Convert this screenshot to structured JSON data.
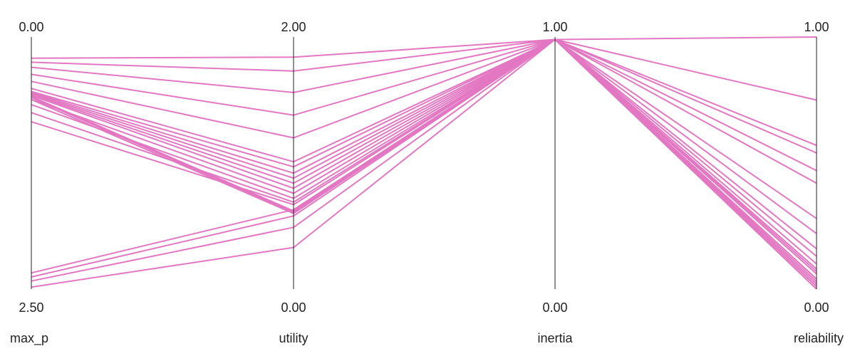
{
  "chart_data": {
    "type": "parallel_coordinates",
    "title": "",
    "line_color": "#e377c2",
    "axes": [
      {
        "name": "max_p",
        "top_label": "0.00",
        "bottom_label": "2.50",
        "range": [
          0,
          2.5
        ],
        "inverted": true
      },
      {
        "name": "utility",
        "top_label": "2.00",
        "bottom_label": "0.00",
        "range": [
          0,
          2
        ]
      },
      {
        "name": "inertia",
        "top_label": "1.00",
        "bottom_label": "0.00",
        "range": [
          0,
          1
        ]
      },
      {
        "name": "reliability",
        "top_label": "1.00",
        "bottom_label": "0.00",
        "range": [
          0,
          1
        ]
      }
    ],
    "series": [
      {
        "values": [
          0.21,
          1.84,
          0.99,
          1.0
        ]
      },
      {
        "values": [
          0.25,
          1.73,
          0.99,
          0.75
        ]
      },
      {
        "values": [
          0.3,
          1.56,
          0.99,
          0.57
        ]
      },
      {
        "values": [
          0.37,
          1.38,
          0.99,
          0.54
        ]
      },
      {
        "values": [
          0.44,
          1.2,
          0.99,
          0.47
        ]
      },
      {
        "values": [
          0.51,
          1.01,
          0.99,
          0.42
        ]
      },
      {
        "values": [
          0.54,
          0.97,
          0.99,
          0.28
        ]
      },
      {
        "values": [
          0.55,
          0.92,
          0.99,
          0.22
        ]
      },
      {
        "values": [
          0.56,
          0.88,
          0.99,
          0.16
        ]
      },
      {
        "values": [
          0.57,
          0.84,
          0.99,
          0.13
        ]
      },
      {
        "values": [
          0.58,
          0.8,
          0.99,
          0.1
        ]
      },
      {
        "values": [
          0.62,
          0.76,
          0.99,
          0.08
        ]
      },
      {
        "values": [
          0.67,
          0.72,
          0.99,
          0.07
        ]
      },
      {
        "values": [
          0.75,
          0.69,
          0.99,
          0.06
        ]
      },
      {
        "values": [
          0.84,
          0.67,
          0.99,
          0.04
        ]
      },
      {
        "values": [
          0.59,
          0.62,
          0.99,
          0.04
        ]
      },
      {
        "values": [
          0.6,
          0.61,
          0.99,
          0.03
        ]
      },
      {
        "values": [
          0.62,
          0.6,
          0.99,
          0.02
        ]
      },
      {
        "values": [
          2.34,
          0.63,
          0.99,
          0.02
        ]
      },
      {
        "values": [
          2.38,
          0.58,
          0.99,
          0.01
        ]
      },
      {
        "values": [
          2.42,
          0.49,
          0.99,
          0.01
        ]
      },
      {
        "values": [
          2.48,
          0.33,
          0.99,
          0.0
        ]
      }
    ]
  }
}
